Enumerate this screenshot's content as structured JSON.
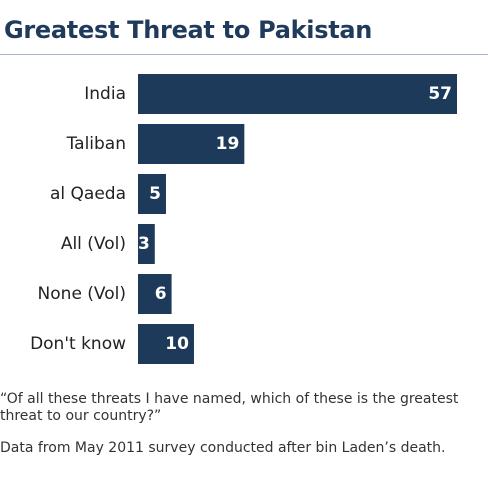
{
  "title": "Greatest Threat to Pakistan",
  "question_note": "“Of all these threats I have named, which of these is the greatest threat to our country?”",
  "source_note": "Data from May 2011 survey conducted after bin Laden’s death.",
  "colors": {
    "bar": "#1e3a5a",
    "title": "#1f3a5a",
    "bar_label": "#ffffff",
    "category_label": "#222222"
  },
  "chart_data": {
    "type": "bar",
    "orientation": "horizontal",
    "categories": [
      "India",
      "Taliban",
      "al Qaeda",
      "All (Vol)",
      "None (Vol)",
      "Don't know"
    ],
    "values": [
      57,
      19,
      5,
      3,
      6,
      10
    ],
    "data_labels": [
      "57",
      "19",
      "5",
      "3",
      "6",
      "10"
    ],
    "xlim": [
      0,
      57
    ],
    "grid": false,
    "legend": "none"
  }
}
